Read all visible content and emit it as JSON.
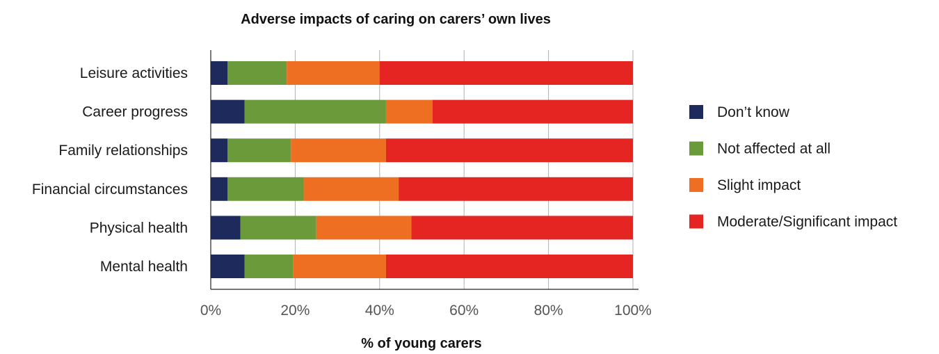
{
  "chart_data": {
    "type": "bar",
    "orientation": "horizontal",
    "stacked": true,
    "title": "Adverse impacts of caring on carers’ own lives",
    "xlabel": "% of young carers",
    "ylabel": "",
    "xlim": [
      0,
      100
    ],
    "xticks": [
      "0%",
      "20%",
      "40%",
      "60%",
      "80%",
      "100%"
    ],
    "grid": true,
    "legend_position": "right",
    "categories": [
      "Leisure activities",
      "Career progress",
      "Family relationships",
      "Financial circumstances",
      "Physical health",
      "Mental health"
    ],
    "series": [
      {
        "name": "Don’t know",
        "color": "#1f2a5c",
        "values": [
          4,
          8,
          4,
          4,
          7,
          8
        ]
      },
      {
        "name": "Not affected at all",
        "color": "#6a9a3a",
        "values": [
          14,
          33.5,
          15,
          18,
          18,
          11.5
        ]
      },
      {
        "name": "Slight impact",
        "color": "#ee6e22",
        "values": [
          22,
          11,
          22.5,
          22.5,
          22.5,
          22
        ]
      },
      {
        "name": "Moderate/Significant impact",
        "color": "#e52521",
        "values": [
          60,
          47.5,
          58.5,
          55.5,
          52.5,
          58.5
        ]
      }
    ]
  }
}
